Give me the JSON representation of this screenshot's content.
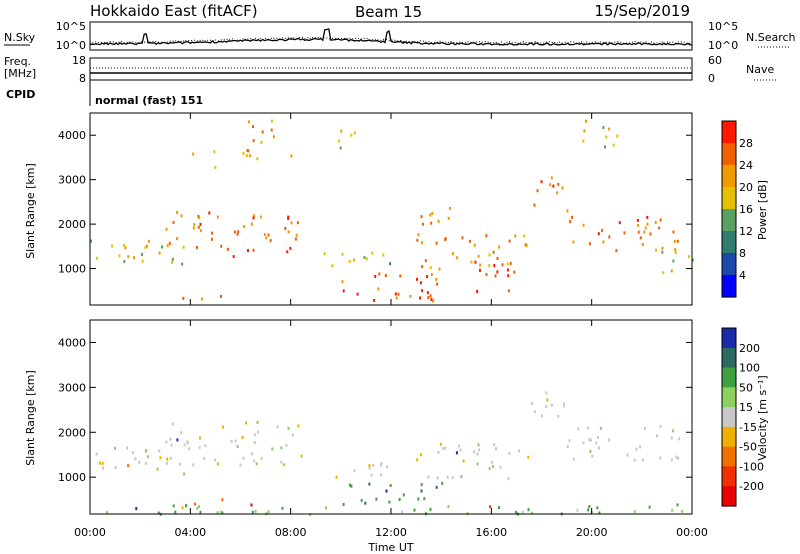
{
  "header": {
    "radar": "Hokkaido East (fitACF)",
    "beam": "Beam 15",
    "date": "15/Sep/2019"
  },
  "side_labels": {
    "nsky": "N.Sky",
    "freq": "Freq.",
    "freq_unit": "[MHz]",
    "cpid": "CPID",
    "nsearch": "N.Search",
    "nave": "Nave"
  },
  "noise_panel": {
    "left_ticks": [
      "10^5",
      "10^0"
    ],
    "right_ticks": [
      "10^5",
      "10^0"
    ],
    "series": "noise sky (solid), noise search (dotted)"
  },
  "freq_panel": {
    "left_ticks": [
      "18",
      "8"
    ],
    "right_ticks": [
      "60",
      "0"
    ]
  },
  "cpid_panel": {
    "text": "normal (fast) 151"
  },
  "chart_data": [
    {
      "type": "heatmap",
      "name": "power",
      "ylabel": "Slant Range [km]",
      "xlabel": "Time UT",
      "x_ticks": [
        "00:00",
        "04:00",
        "08:00",
        "12:00",
        "16:00",
        "20:00",
        "00:00"
      ],
      "x_range_hours": [
        0,
        24
      ],
      "y_ticks": [
        1000,
        2000,
        3000,
        4000
      ],
      "ylim": [
        180,
        4500
      ],
      "colorbar": {
        "label": "Power [dB]",
        "ticks": [
          4,
          8,
          12,
          16,
          20,
          24,
          28
        ],
        "range": [
          0,
          30
        ],
        "colors": [
          "#0000ff",
          "#1c4aa8",
          "#2e7d6e",
          "#5aa060",
          "#e6c000",
          "#f09a00",
          "#f06000",
          "#ff1800"
        ]
      },
      "blobs": [
        {
          "t0": 0.0,
          "t1": 4.0,
          "r0": 1100,
          "r1": 1700,
          "level": 18
        },
        {
          "t0": 3.0,
          "t1": 8.5,
          "r0": 1300,
          "r1": 2300,
          "level": 26
        },
        {
          "t0": 4.0,
          "t1": 5.0,
          "r0": 3300,
          "r1": 3700,
          "level": 18
        },
        {
          "t0": 6.0,
          "t1": 8.0,
          "r0": 3500,
          "r1": 4400,
          "level": 24
        },
        {
          "t0": 9.5,
          "t1": 10.6,
          "r0": 3700,
          "r1": 4200,
          "level": 18
        },
        {
          "t0": 9.0,
          "t1": 12.0,
          "r0": 1000,
          "r1": 1400,
          "level": 16
        },
        {
          "t0": 9.5,
          "t1": 14.0,
          "r0": 300,
          "r1": 1000,
          "level": 28
        },
        {
          "t0": 13.0,
          "t1": 17.5,
          "r0": 1000,
          "r1": 1800,
          "level": 24
        },
        {
          "t0": 15.0,
          "t1": 17.0,
          "r0": 500,
          "r1": 1300,
          "level": 30
        },
        {
          "t0": 13.0,
          "t1": 14.5,
          "r0": 2000,
          "r1": 2600,
          "level": 26
        },
        {
          "t0": 17.5,
          "t1": 19.0,
          "r0": 2300,
          "r1": 3100,
          "level": 26
        },
        {
          "t0": 19.0,
          "t1": 23.5,
          "r0": 1400,
          "r1": 2200,
          "level": 26
        },
        {
          "t0": 19.5,
          "t1": 21.0,
          "r0": 3700,
          "r1": 4400,
          "level": 20
        },
        {
          "t0": 22.5,
          "t1": 24.0,
          "r0": 900,
          "r1": 1500,
          "level": 18
        },
        {
          "t0": 3.5,
          "t1": 5.5,
          "r0": 350,
          "r1": 550,
          "level": 26
        }
      ]
    },
    {
      "type": "heatmap",
      "name": "velocity",
      "ylabel": "Slant Range [km]",
      "xlabel": "Time UT",
      "x_ticks": [
        "00:00",
        "04:00",
        "08:00",
        "12:00",
        "16:00",
        "20:00",
        "00:00"
      ],
      "x_range_hours": [
        0,
        24
      ],
      "y_ticks": [
        1000,
        2000,
        3000,
        4000
      ],
      "ylim": [
        180,
        4500
      ],
      "colorbar": {
        "label": "Velocity [m s⁻¹]",
        "ticks": [
          200,
          100,
          50,
          15,
          -15,
          -50,
          -100,
          -200
        ],
        "colors": [
          "#1a2aa8",
          "#2a6a60",
          "#3fa040",
          "#8ed060",
          "#c8c8c8",
          "#f0b000",
          "#f07000",
          "#f03000",
          "#e80000"
        ]
      },
      "blobs": [
        {
          "t0": 0.0,
          "t1": 4.0,
          "r0": 1100,
          "r1": 1700,
          "level": 0
        },
        {
          "t0": 3.0,
          "t1": 8.5,
          "r0": 1300,
          "r1": 2300,
          "level": 0
        },
        {
          "t0": 9.0,
          "t1": 12.0,
          "r0": 1000,
          "r1": 1400,
          "level": 0
        },
        {
          "t0": 13.0,
          "t1": 17.5,
          "r0": 1000,
          "r1": 1800,
          "level": 0
        },
        {
          "t0": 17.5,
          "t1": 19.0,
          "r0": 2300,
          "r1": 3100,
          "level": 0
        },
        {
          "t0": 19.0,
          "t1": 23.5,
          "r0": 1400,
          "r1": 2200,
          "level": 0
        },
        {
          "t0": 10.0,
          "t1": 14.0,
          "r0": 300,
          "r1": 900,
          "level": 60
        },
        {
          "t0": 3.5,
          "t1": 5.5,
          "r0": 350,
          "r1": 550,
          "level": -50
        },
        {
          "t0": 0.0,
          "t1": 24.0,
          "r0": 200,
          "r1": 420,
          "level": 30
        }
      ]
    }
  ]
}
